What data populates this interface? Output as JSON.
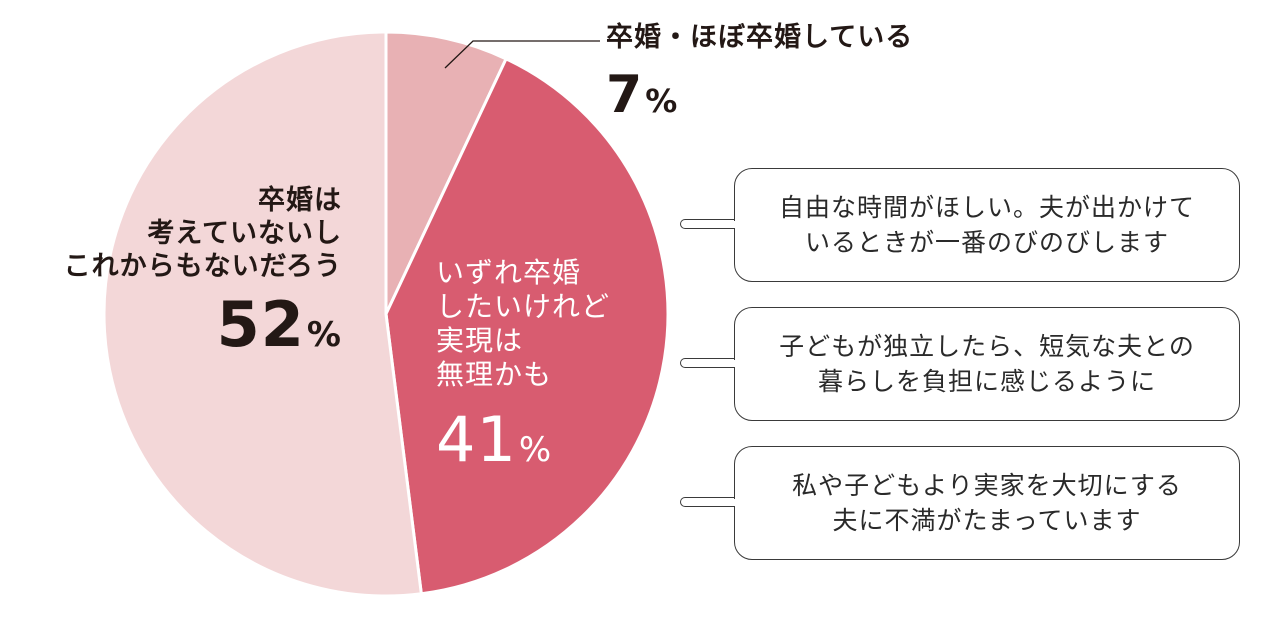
{
  "chart_data": {
    "type": "pie",
    "title": "",
    "start_angle_deg": 0,
    "direction": "clockwise",
    "slices": [
      {
        "label": "卒婚・ほぼ卒婚している",
        "value": 7,
        "color": "#e8b1b4"
      },
      {
        "label": "いずれ卒婚したいけれど実現は無理かも",
        "value": 41,
        "color": "#d85c70"
      },
      {
        "label": "卒婚は考えていないしこれからもないだろう",
        "value": 52,
        "color": "#f3d7d8"
      }
    ],
    "unit": "%"
  },
  "labels": {
    "done": {
      "lines": [
        "卒婚・ほぼ卒婚している"
      ],
      "percent": "7",
      "unit": "%"
    },
    "want": {
      "lines": [
        "いずれ卒婚",
        "したいけれど",
        "実現は",
        "無理かも"
      ],
      "percent": "41",
      "unit": "%"
    },
    "never": {
      "lines": [
        "卒婚は",
        "考えていないし",
        "これからもないだろう"
      ],
      "percent": "52",
      "unit": "%"
    }
  },
  "comments": [
    {
      "lines": [
        "自由な時間がほしい。夫が出かけて",
        "いるときが一番のびのびします"
      ]
    },
    {
      "lines": [
        "子どもが独立したら、短気な夫との",
        "暮らしを負担に感じるように"
      ]
    },
    {
      "lines": [
        "私や子どもより実家を大切にする",
        "夫に不満がたまっています"
      ]
    }
  ],
  "colors": {
    "slice_done": "#e8b1b4",
    "slice_want": "#d85c70",
    "slice_never": "#f3d7d8",
    "separator": "#ffffff",
    "leader_line": "#231815",
    "bubble_border": "#3a3a3a"
  }
}
